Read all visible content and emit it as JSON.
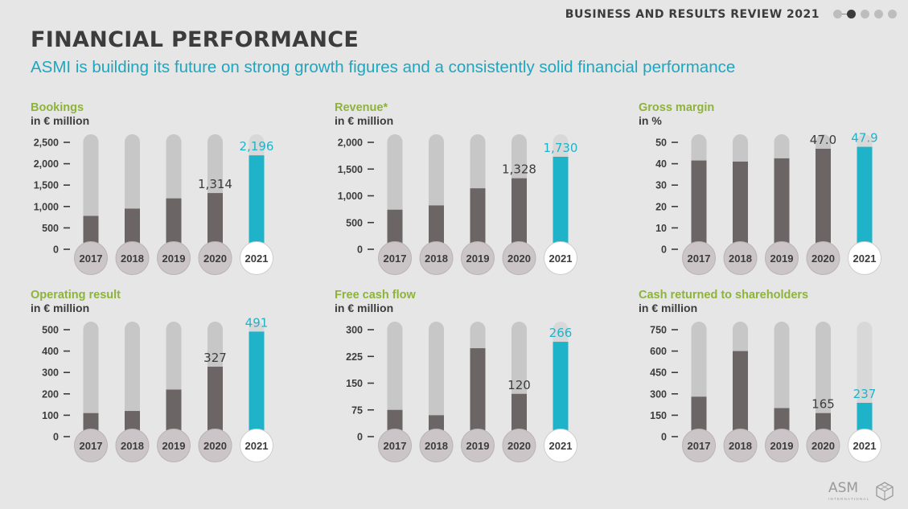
{
  "header": {
    "report_title": "BUSINESS AND RESULTS REVIEW 2021",
    "page_dots": 5,
    "active_dot": 1
  },
  "page": {
    "title": "FINANCIAL PERFORMANCE",
    "subtitle": "ASMI is building its future on strong growth figures and a consistently solid financial performance"
  },
  "logo": {
    "text": "ASM",
    "subtext": "INTERNATIONAL"
  },
  "colors": {
    "bar_dark": "#6c6566",
    "bar_track": "#c8c7c8",
    "highlight": "#1fb3c9",
    "title_green": "#8db33a",
    "circle_fill": "#cbc5c7",
    "circle_highlight": "#ffffff"
  },
  "chart_data": [
    {
      "type": "bar",
      "title": "Bookings",
      "unit": "in € million",
      "categories": [
        "2017",
        "2018",
        "2019",
        "2020",
        "2021"
      ],
      "values": [
        780,
        950,
        1190,
        1314,
        2196
      ],
      "ticks": [
        0,
        500,
        1000,
        1500,
        2000,
        2500
      ],
      "tick_labels": [
        "0",
        "500",
        "1,000",
        "1,500",
        "2,000",
        "2,500"
      ],
      "ylim": [
        0,
        2500
      ],
      "data_labels": [
        null,
        null,
        null,
        "1,314",
        "2,196"
      ],
      "highlight_index": 4
    },
    {
      "type": "bar",
      "title": "Revenue*",
      "unit": "in € million",
      "categories": [
        "2017",
        "2018",
        "2019",
        "2020",
        "2021"
      ],
      "values": [
        740,
        820,
        1140,
        1328,
        1730
      ],
      "ticks": [
        0,
        500,
        1000,
        1500,
        2000
      ],
      "tick_labels": [
        "0",
        "500",
        "1,000",
        "1,500",
        "2,000"
      ],
      "ylim": [
        0,
        2000
      ],
      "data_labels": [
        null,
        null,
        null,
        "1,328",
        "1,730"
      ],
      "highlight_index": 4
    },
    {
      "type": "bar",
      "title": "Gross margin",
      "unit": "in %",
      "categories": [
        "2017",
        "2018",
        "2019",
        "2020",
        "2021"
      ],
      "values": [
        41.5,
        41.0,
        42.5,
        47.0,
        47.9
      ],
      "ticks": [
        0,
        10,
        20,
        30,
        40,
        50
      ],
      "tick_labels": [
        "0",
        "10",
        "20",
        "30",
        "40",
        "50"
      ],
      "ylim": [
        0,
        50
      ],
      "data_labels": [
        null,
        null,
        null,
        "47.0",
        "47.9"
      ],
      "highlight_index": 4
    },
    {
      "type": "bar",
      "title": "Operating result",
      "unit": "in € million",
      "categories": [
        "2017",
        "2018",
        "2019",
        "2020",
        "2021"
      ],
      "values": [
        110,
        120,
        220,
        327,
        491
      ],
      "ticks": [
        0,
        100,
        200,
        300,
        400,
        500
      ],
      "tick_labels": [
        "0",
        "100",
        "200",
        "300",
        "400",
        "500"
      ],
      "ylim": [
        0,
        500
      ],
      "data_labels": [
        null,
        null,
        null,
        "327",
        "491"
      ],
      "highlight_index": 4
    },
    {
      "type": "bar",
      "title": "Free cash flow",
      "unit": "in € million",
      "categories": [
        "2017",
        "2018",
        "2019",
        "2020",
        "2021"
      ],
      "values": [
        75,
        60,
        248,
        120,
        266
      ],
      "ticks": [
        0,
        75,
        150,
        225,
        300
      ],
      "tick_labels": [
        "0",
        "75",
        "150",
        "225",
        "300"
      ],
      "ylim": [
        0,
        300
      ],
      "data_labels": [
        null,
        null,
        null,
        "120",
        "266"
      ],
      "highlight_index": 4
    },
    {
      "type": "bar",
      "title": "Cash returned to shareholders",
      "unit": "in € million",
      "categories": [
        "2017",
        "2018",
        "2019",
        "2020",
        "2021"
      ],
      "values": [
        280,
        600,
        200,
        165,
        237
      ],
      "ticks": [
        0,
        150,
        300,
        450,
        600,
        750
      ],
      "tick_labels": [
        "0",
        "150",
        "300",
        "450",
        "600",
        "750"
      ],
      "ylim": [
        0,
        750
      ],
      "data_labels": [
        null,
        null,
        null,
        "165",
        "237"
      ],
      "highlight_index": 4
    }
  ]
}
